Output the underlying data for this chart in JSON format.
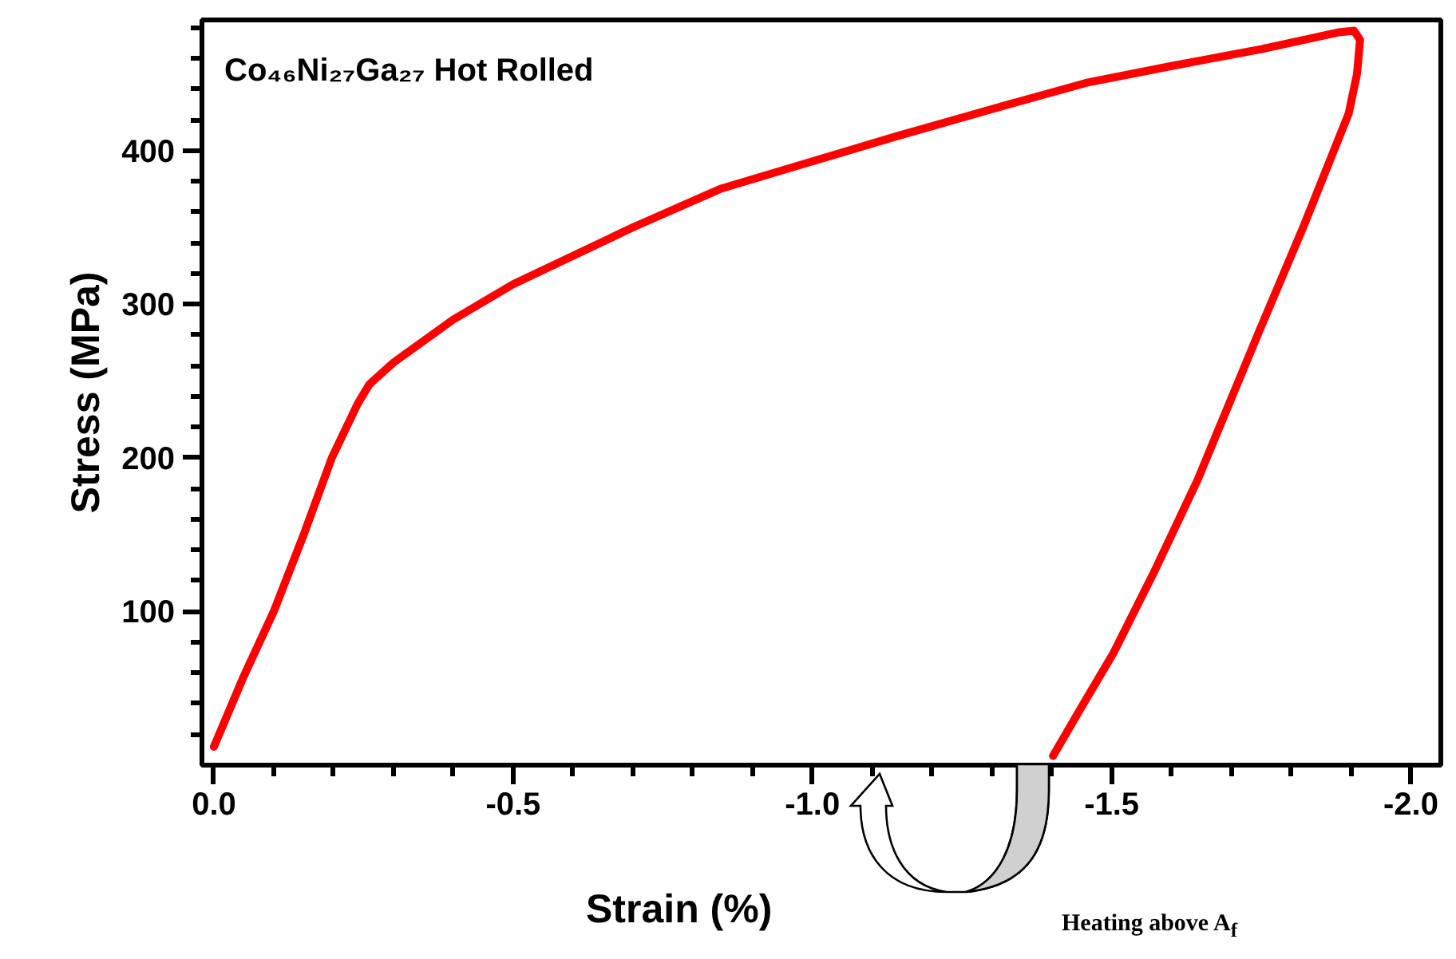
{
  "chart_data": {
    "type": "line",
    "title": "Co₄₆Ni₂₇Ga₂₇  Hot Rolled",
    "xlabel": "Strain (%)",
    "ylabel": "Stress (MPa)",
    "annotations": [
      "Heating above A$_{f}$"
    ],
    "xlim": [
      0.02,
      -2.05
    ],
    "ylim": [
      0,
      485
    ],
    "xticks": [
      {
        "value": 0,
        "label": "0.0"
      },
      {
        "value": -0.1,
        "label": null
      },
      {
        "value": -0.2,
        "label": null
      },
      {
        "value": -0.3,
        "label": null
      },
      {
        "value": -0.4,
        "label": null
      },
      -0.5,
      {
        "value": -0.6,
        "label": null
      },
      {
        "value": -0.7,
        "label": null
      },
      {
        "value": -0.8,
        "label": null
      },
      {
        "value": -0.9,
        "label": null
      },
      {
        "value": -1.0,
        "label": "-1.0"
      },
      {
        "value": -1.1,
        "label": null
      },
      {
        "value": -1.2,
        "label": null
      },
      {
        "value": -1.3,
        "label": null
      },
      {
        "value": -1.4,
        "label": null
      },
      -1.5,
      {
        "value": -1.6,
        "label": null
      },
      {
        "value": -1.7,
        "label": null
      },
      {
        "value": -1.8,
        "label": null
      },
      {
        "value": -1.9,
        "label": null
      },
      {
        "value": -2.0,
        "label": "-2.0"
      }
    ],
    "yticks": [
      {
        "value": 20,
        "label": null
      },
      {
        "value": 40,
        "label": null
      },
      {
        "value": 60,
        "label": null
      },
      {
        "value": 80,
        "label": null
      },
      100,
      {
        "value": 120,
        "label": null
      },
      {
        "value": 140,
        "label": null
      },
      {
        "value": 160,
        "label": null
      },
      {
        "value": 180,
        "label": null
      },
      200,
      {
        "value": 220,
        "label": null
      },
      {
        "value": 240,
        "label": null
      },
      {
        "value": 260,
        "label": null
      },
      {
        "value": 280,
        "label": null
      },
      300,
      {
        "value": 320,
        "label": null
      },
      {
        "value": 340,
        "label": null
      },
      {
        "value": 360,
        "label": null
      },
      {
        "value": 380,
        "label": null
      },
      400,
      {
        "value": 420,
        "label": null
      },
      {
        "value": 440,
        "label": null
      },
      {
        "value": 460,
        "label": null
      },
      {
        "value": 480,
        "label": null
      }
    ],
    "grid": false,
    "line_style": "solid",
    "series": [
      {
        "color": "#ff0000",
        "x": [
          0,
          -0.05,
          -0.1,
          -0.15,
          -0.197,
          -0.24,
          -0.26,
          -0.3,
          -0.4,
          -0.5,
          -0.7,
          -0.846,
          -1.0,
          -1.138,
          -1.3,
          -1.457,
          -1.6,
          -1.75,
          -1.88,
          -1.905,
          -1.915,
          -1.91,
          -1.896,
          -1.82,
          -1.745,
          -1.644,
          -1.57,
          -1.503,
          -1.45,
          -1.402
        ],
        "values": [
          12,
          58,
          100,
          150,
          200,
          235,
          248,
          262,
          290,
          313,
          350,
          375,
          393,
          409,
          427,
          444,
          455,
          466,
          477,
          478,
          472,
          450,
          424,
          350,
          281,
          186,
          125,
          73,
          38,
          6
        ]
      }
    ]
  }
}
